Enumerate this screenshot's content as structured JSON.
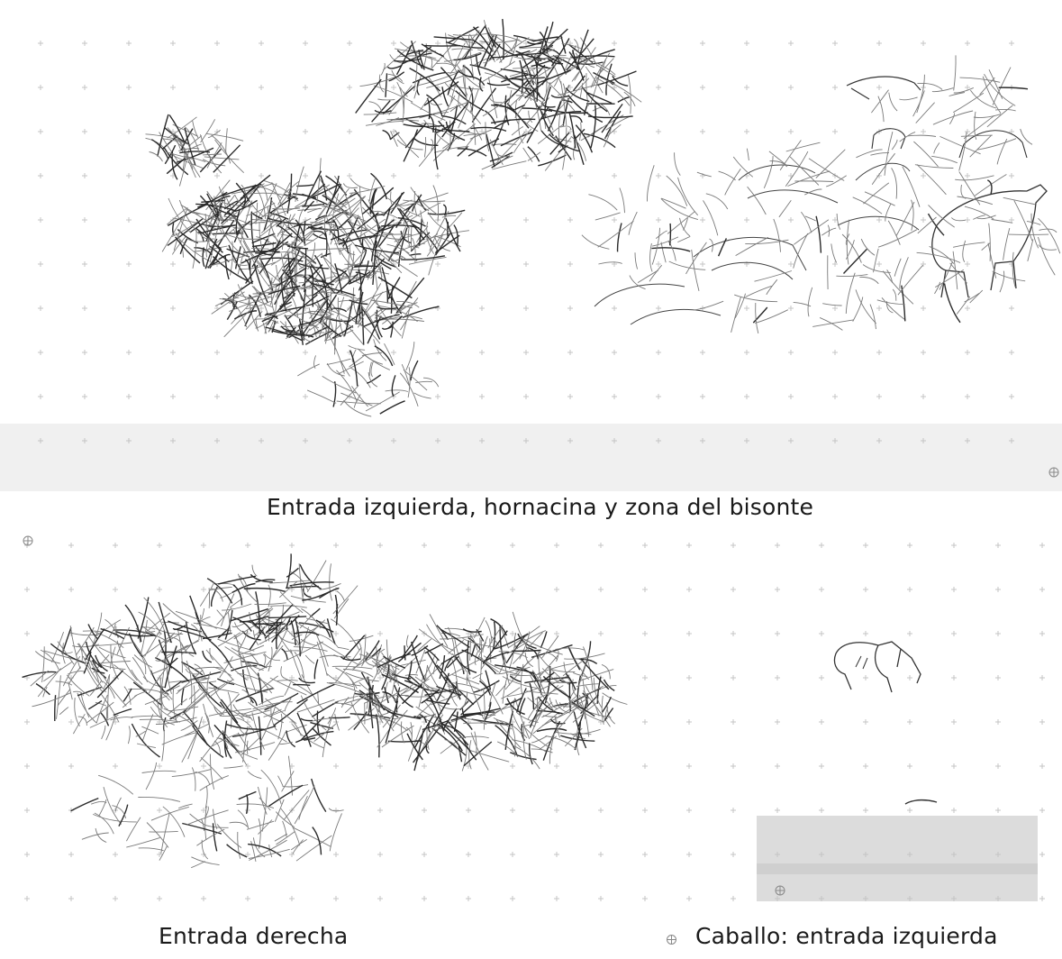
{
  "captions": {
    "top": "Entrada izquierda, hornacina y zona del bisonte",
    "bottom_left": "Entrada derecha",
    "bottom_right": "Caballo: entrada izquierda"
  },
  "colors": {
    "ink": "#1a1a1a",
    "grid": "#bdbdbd",
    "marker": "#888888",
    "scan_band": "#d8d8d8"
  },
  "icons": [
    "registration-mark-icon",
    "grid-cross-icon"
  ]
}
